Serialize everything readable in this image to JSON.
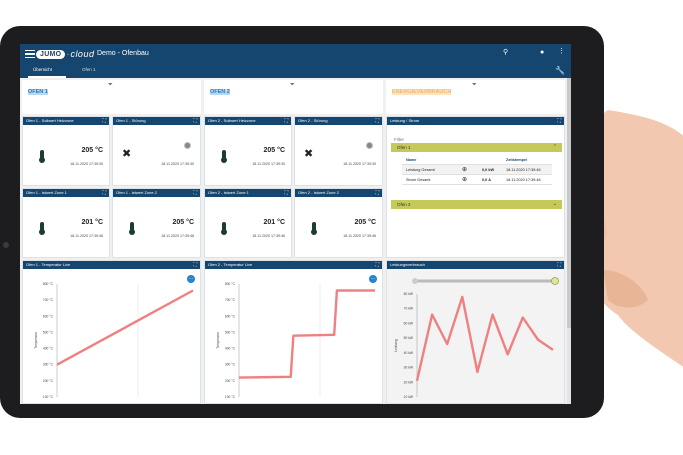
{
  "app": {
    "logo_brand": "JUMO",
    "logo_cloud": "cloud",
    "title": "Demo - Ofenbau",
    "tabs": [
      "Übersicht",
      "Ofen 1"
    ]
  },
  "sections": {
    "ofen1": "OFEN 1",
    "ofen2": "OFEN 2",
    "energy": "ENERGIEVERBRAUCH"
  },
  "cards": [
    {
      "title": "Ofen 1 - Sollwert Heizzone",
      "value": "205 °C",
      "time": "18.11.2020  17:39:30",
      "icon": "thermometer-icon"
    },
    {
      "title": "Ofen 1 - Störung",
      "value": "",
      "time": "18.11.2020  17:39:30",
      "icon": "tools-icon"
    },
    {
      "title": "Ofen 2 - Sollwert Heizzone",
      "value": "205 °C",
      "time": "18.11.2020  17:39:30",
      "icon": "thermometer-icon"
    },
    {
      "title": "Ofen 2 - Störung",
      "value": "",
      "time": "18.11.2020  17:39:30",
      "icon": "tools-icon"
    },
    {
      "title": "Ofen 1 - Istwert Zone 1",
      "value": "201 °C",
      "time": "18.11.2020  17:39:46",
      "icon": "thermometer-icon"
    },
    {
      "title": "Ofen 1 - Istwert Zone 2",
      "value": "205 °C",
      "time": "18.11.2020  17:39:46",
      "icon": "thermometer-icon"
    },
    {
      "title": "Ofen 2 - Istwert Zone 1",
      "value": "201 °C",
      "time": "18.11.2020  17:39:46",
      "icon": "thermometer-icon"
    },
    {
      "title": "Ofen 2 - Istwert Zone 2",
      "value": "205 °C",
      "time": "18.11.2020  17:39:46",
      "icon": "thermometer-icon"
    }
  ],
  "power_panel": {
    "title": "Leistung / Strom",
    "filter_label": "Filter",
    "group1": "Ofen 1",
    "group2": "Ofen 2",
    "col_name": "Name",
    "col_time": "Zeitstempel",
    "rows": [
      {
        "name": "Leistung Gesamt",
        "value": "0,0 kW",
        "time": "18.11.2020 17:39:46"
      },
      {
        "name": "Strom Gesamt",
        "value": "0,0 A",
        "time": "18.11.2020 17:39:46"
      }
    ]
  },
  "colors": {
    "appbar": "#15466f",
    "accent_yellow": "#c5c95a",
    "series": "#f08080",
    "fab": "#2185d0"
  },
  "chart_data": [
    {
      "type": "line",
      "title": "Ofen 1 - Temperatur Live",
      "ylabel": "Temperatur",
      "yticks": [
        "800 °C",
        "700 °C",
        "600 °C",
        "500 °C",
        "400 °C",
        "300 °C",
        "200 °C",
        "100 °C"
      ],
      "ylim": [
        100,
        800
      ],
      "x": [
        0,
        1
      ],
      "series": [
        {
          "values": [
            300,
            760
          ]
        }
      ]
    },
    {
      "type": "line",
      "title": "Ofen 2 - Temperatur Live",
      "ylabel": "Temperatur",
      "yticks": [
        "800 °C",
        "700 °C",
        "600 °C",
        "500 °C",
        "400 °C",
        "300 °C",
        "200 °C",
        "100 °C"
      ],
      "ylim": [
        100,
        800
      ],
      "x": [
        0,
        0.38,
        0.4,
        0.7,
        0.72,
        1
      ],
      "series": [
        {
          "values": [
            220,
            225,
            480,
            485,
            760,
            760
          ]
        }
      ]
    },
    {
      "type": "line",
      "title": "Leistungsverbrauch",
      "ylabel": "Leistung",
      "yticks": [
        "80 kW",
        "70 kW",
        "60 kW",
        "50 kW",
        "40 kW",
        "30 kW",
        "20 kW",
        "10 kW"
      ],
      "ylim": [
        10,
        80
      ],
      "x": [
        0,
        1,
        2,
        3,
        4,
        5,
        6,
        7,
        8,
        9
      ],
      "series": [
        {
          "values": [
            21,
            66,
            46,
            78,
            27,
            66,
            39,
            64,
            49,
            42
          ]
        }
      ]
    }
  ]
}
